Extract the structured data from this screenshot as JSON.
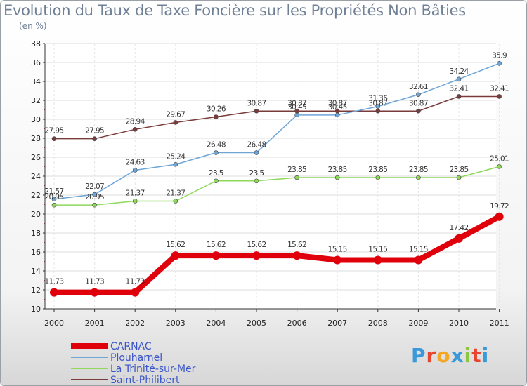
{
  "chart_data": {
    "type": "line",
    "title": "Evolution du Taux de Taxe Foncière sur les Propriétés Non Bâties",
    "ylabel": "(en %)",
    "xlabel": "",
    "ylim": [
      10,
      38
    ],
    "yticks": [
      10,
      12,
      14,
      16,
      18,
      20,
      22,
      24,
      26,
      28,
      30,
      32,
      34,
      36,
      38
    ],
    "categories": [
      "2000",
      "2001",
      "2002",
      "2003",
      "2004",
      "2005",
      "2006",
      "2007",
      "2008",
      "2009",
      "2010",
      "2011"
    ],
    "grid": true,
    "legend_position": "bottom-left",
    "series": [
      {
        "name": "CARNAC",
        "color": "#e0000b",
        "values": [
          11.73,
          11.73,
          11.73,
          15.62,
          15.62,
          15.62,
          15.62,
          15.15,
          15.15,
          15.15,
          17.42,
          19.72
        ],
        "labels": [
          "11.73",
          "11.73",
          "11.73",
          "15.62",
          "15.62",
          "15.62",
          "15.62",
          "15.15",
          "15.15",
          "15.15",
          "17.42",
          "19.72"
        ]
      },
      {
        "name": "Plouharnel",
        "color": "#6ea5d6",
        "values": [
          21.57,
          22.07,
          24.63,
          25.24,
          26.48,
          26.48,
          30.45,
          30.45,
          31.36,
          32.61,
          34.24,
          35.9
        ],
        "labels": [
          "21.57",
          "22.07",
          "24.63",
          "25.24",
          "26.48",
          "26.48",
          "30.45",
          "30.45",
          "31.36",
          "32.61",
          "34.24",
          "35.9"
        ]
      },
      {
        "name": "La Trinité-sur-Mer",
        "color": "#8ed85a",
        "values": [
          20.95,
          20.95,
          21.37,
          21.37,
          23.5,
          23.5,
          23.85,
          23.85,
          23.85,
          23.85,
          23.85,
          25.01
        ],
        "labels": [
          "20.95",
          "20.95",
          "21.37",
          "21.37",
          "23.5",
          "23.5",
          "23.85",
          "23.85",
          "23.85",
          "23.85",
          "23.85",
          "25.01"
        ]
      },
      {
        "name": "Saint-Philibert",
        "color": "#7a3b3b",
        "values": [
          27.95,
          27.95,
          28.94,
          29.67,
          30.26,
          30.87,
          30.87,
          30.87,
          30.87,
          30.87,
          32.41,
          32.41
        ],
        "labels": [
          "27.95",
          "27.95",
          "28.94",
          "29.67",
          "30.26",
          "30.87",
          "30.87",
          "30.87",
          "30.87",
          "30.87",
          "32.41",
          "32.41"
        ]
      }
    ]
  },
  "logo": {
    "text": "Proxiti",
    "letters": [
      "P",
      "r",
      "o",
      "x",
      "i",
      "t",
      "i"
    ],
    "colors": [
      "#3a9ad9",
      "#e8452c",
      "#f5a623",
      "#3a9ad9",
      "#8cc63f",
      "#e8452c",
      "#3a9ad9"
    ]
  }
}
